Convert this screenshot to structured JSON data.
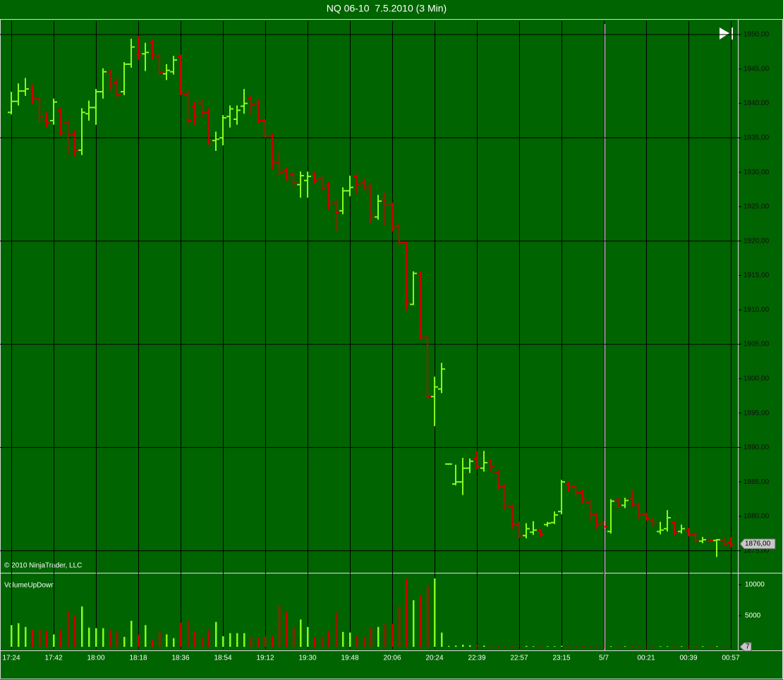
{
  "chart_data": [
    {
      "type": "ohlc",
      "title": "NQ 06-10  7.5.2010 (3 Min)",
      "copyright": "© 2010 NinjaTrader, LLC",
      "x": [
        "17:24",
        null,
        null,
        null,
        null,
        null,
        "17:42",
        null,
        null,
        null,
        null,
        null,
        "18:00",
        null,
        null,
        null,
        null,
        null,
        "18:18",
        null,
        null,
        null,
        null,
        null,
        "18:36",
        null,
        null,
        null,
        null,
        null,
        "18:54",
        null,
        null,
        null,
        null,
        null,
        "19:12",
        null,
        null,
        null,
        null,
        null,
        "19:30",
        null,
        null,
        null,
        null,
        null,
        "19:48",
        null,
        null,
        null,
        null,
        null,
        "20:06",
        null,
        null,
        null,
        null,
        null,
        "20:24",
        null,
        null,
        null,
        null,
        null,
        "22:39",
        null,
        null,
        null,
        null,
        null,
        "22:57",
        null,
        null,
        null,
        null,
        null,
        "23:15",
        null,
        null,
        null,
        null,
        null,
        "5/7",
        null,
        null,
        null,
        null,
        null,
        "00:21",
        null,
        null,
        null,
        null,
        null,
        "00:39",
        null,
        null,
        null,
        null,
        null,
        "00:57"
      ],
      "open": [
        1938.7,
        1940.3,
        1941.8,
        1942.3,
        1940.8,
        1937.6,
        1937.5,
        1939.0,
        1937.3,
        1935.4,
        1933.2,
        1938.5,
        1939.4,
        1941.7,
        1944.6,
        1943.0,
        1941.7,
        1945.7,
        1947.2,
        1947.2,
        1948.8,
        1946.7,
        1944.3,
        1944.6,
        1946.8,
        1941.3,
        1939.6,
        1940.0,
        1938.7,
        1934.6,
        1935.0,
        1938.1,
        1937.7,
        1939.6,
        1940.7,
        1940.0,
        1937.5,
        1935.3,
        1931.5,
        1930.2,
        1929.6,
        1928.2,
        1928.8,
        1929.8,
        1929.2,
        1928.1,
        1925.7,
        1924.4,
        1927.3,
        1929.4,
        1928.6,
        1927.8,
        1923.5,
        1925.8,
        1925.2,
        1922.0,
        1919.8,
        1910.8,
        1915.2,
        1906.0,
        1897.4,
        1898.5,
        1887.6,
        1884.7,
        1885.0,
        1887.0,
        1888.4,
        1887.0,
        1888.0,
        1886.4,
        1884.4,
        1881.4,
        1878.9,
        1877.2,
        1877.7,
        1877.9,
        1878.8,
        1879.1,
        1880.7,
        1884.7,
        1884.3,
        1883.5,
        1882.0,
        1880.2,
        1879.0,
        1877.8,
        1882.4,
        1881.6,
        1882.5,
        1881.6,
        1880.2,
        1879.5,
        1877.8,
        1878.2,
        1879.1,
        1877.8,
        1878.0,
        1877.4,
        1876.4,
        1876.6,
        1876.5,
        1876.4,
        1876.2
      ],
      "high": [
        1941.6,
        1942.8,
        1943.6,
        1942.6,
        1940.8,
        1938.6,
        1940.6,
        1939.2,
        1937.6,
        1936.0,
        1939.2,
        1940.3,
        1942.0,
        1945.0,
        1944.8,
        1943.6,
        1945.9,
        1949.3,
        1949.7,
        1948.7,
        1949.2,
        1947.2,
        1945.6,
        1946.8,
        1947.0,
        1942.0,
        1940.2,
        1940.6,
        1939.2,
        1935.8,
        1938.2,
        1939.6,
        1939.6,
        1942.0,
        1941.0,
        1940.4,
        1937.6,
        1935.5,
        1933.0,
        1930.6,
        1930.0,
        1930.0,
        1930.0,
        1929.9,
        1929.4,
        1928.5,
        1926.0,
        1927.7,
        1929.4,
        1929.6,
        1929.0,
        1928.2,
        1926.6,
        1927.0,
        1925.5,
        1922.5,
        1919.8,
        1915.5,
        1915.5,
        1906.2,
        1900.2,
        1902.2,
        1887.6,
        1887.4,
        1888.4,
        1888.3,
        1889.4,
        1889.4,
        1888.2,
        1886.6,
        1884.6,
        1881.6,
        1879.2,
        1878.9,
        1879.2,
        1878.1,
        1879.1,
        1880.6,
        1885.2,
        1884.9,
        1884.5,
        1883.8,
        1882.4,
        1880.4,
        1879.2,
        1882.4,
        1882.6,
        1882.6,
        1883.7,
        1881.9,
        1880.4,
        1879.8,
        1879.1,
        1880.8,
        1879.2,
        1878.7,
        1878.2,
        1877.6,
        1876.9,
        1876.7,
        1876.6,
        1876.8,
        1876.9
      ],
      "low": [
        1938.5,
        1939.8,
        1941.2,
        1940.0,
        1937.3,
        1936.6,
        1937.0,
        1935.4,
        1932.7,
        1932.4,
        1932.6,
        1937.6,
        1937.0,
        1940.8,
        1942.0,
        1940.9,
        1941.3,
        1945.3,
        1946.4,
        1944.8,
        1946.5,
        1944.3,
        1943.5,
        1944.3,
        1941.3,
        1937.0,
        1937.0,
        1938.0,
        1934.1,
        1933.2,
        1934.0,
        1936.6,
        1937.0,
        1938.6,
        1938.5,
        1937.2,
        1935.1,
        1930.5,
        1929.6,
        1928.9,
        1928.0,
        1926.4,
        1926.4,
        1928.4,
        1927.5,
        1924.7,
        1921.5,
        1924.0,
        1926.6,
        1927.0,
        1927.5,
        1922.6,
        1923.2,
        1922.4,
        1921.5,
        1919.4,
        1910.0,
        1910.8,
        1905.8,
        1897.2,
        1893.2,
        1898.0,
        1887.6,
        1884.6,
        1883.2,
        1886.4,
        1886.9,
        1886.6,
        1886.7,
        1884.0,
        1881.0,
        1878.3,
        1876.9,
        1876.9,
        1877.4,
        1877.1,
        1878.6,
        1879.0,
        1880.4,
        1883.7,
        1882.9,
        1882.0,
        1879.4,
        1878.3,
        1878.3,
        1877.6,
        1881.3,
        1881.3,
        1881.5,
        1879.7,
        1879.5,
        1878.6,
        1877.5,
        1877.9,
        1877.4,
        1877.6,
        1877.2,
        1876.3,
        1876.2,
        1876.4,
        1874.2,
        1875.9,
        1875.6
      ],
      "close": [
        1940.3,
        1941.8,
        1942.1,
        1940.8,
        1938.0,
        1937.2,
        1940.2,
        1935.7,
        1935.4,
        1933.2,
        1938.7,
        1939.4,
        1941.7,
        1944.6,
        1942.6,
        1941.3,
        1945.7,
        1948.2,
        1947.0,
        1947.4,
        1947.2,
        1944.5,
        1944.8,
        1946.3,
        1941.5,
        1937.5,
        1938.0,
        1938.7,
        1934.5,
        1934.8,
        1937.9,
        1939.2,
        1939.0,
        1940.0,
        1939.8,
        1937.5,
        1935.3,
        1931.5,
        1930.0,
        1929.2,
        1928.6,
        1929.5,
        1929.4,
        1928.8,
        1927.7,
        1925.2,
        1924.2,
        1927.3,
        1927.8,
        1928.3,
        1927.8,
        1923.7,
        1925.8,
        1925.2,
        1922.0,
        1919.8,
        1911.0,
        1915.3,
        1906.0,
        1897.4,
        1898.8,
        1901.4,
        1887.6,
        1885.0,
        1887.0,
        1888.0,
        1887.3,
        1887.8,
        1887.2,
        1884.4,
        1881.6,
        1878.9,
        1877.2,
        1878.2,
        1878.0,
        1877.3,
        1879.0,
        1880.2,
        1885.0,
        1884.2,
        1883.5,
        1882.5,
        1880.2,
        1878.9,
        1878.5,
        1882.2,
        1881.6,
        1882.3,
        1881.8,
        1880.2,
        1879.7,
        1879.0,
        1878.0,
        1879.8,
        1877.7,
        1878.2,
        1877.4,
        1876.6,
        1876.6,
        1876.5,
        1876.6,
        1876.0,
        1876.0
      ],
      "last_price_label": "1876,00",
      "ylim": [
        1871.8,
        1951.95
      ],
      "yticks": [
        {
          "value": 1875,
          "label": "1875,00"
        },
        {
          "value": 1880,
          "label": "1880,00"
        },
        {
          "value": 1885,
          "label": "1885,00"
        },
        {
          "value": 1890,
          "label": "1890,00"
        },
        {
          "value": 1895,
          "label": "1895,00"
        },
        {
          "value": 1900,
          "label": "1900,00"
        },
        {
          "value": 1905,
          "label": "1905,00"
        },
        {
          "value": 1910,
          "label": "1910,00"
        },
        {
          "value": 1915,
          "label": "1915,00"
        },
        {
          "value": 1920,
          "label": "1920,00"
        },
        {
          "value": 1925,
          "label": "1925,00"
        },
        {
          "value": 1930,
          "label": "1930,00"
        },
        {
          "value": 1935,
          "label": "1935,00"
        },
        {
          "value": 1940,
          "label": "1940,00"
        },
        {
          "value": 1945,
          "label": "1945,00"
        },
        {
          "value": 1950,
          "label": "1950,00"
        }
      ],
      "grid_every": 3,
      "up_color": "#84ff1c",
      "down_color": "#cc0000",
      "background": "#006400"
    },
    {
      "type": "bar",
      "title": "VolumeUpDown",
      "values": [
        3500,
        3800,
        3200,
        2800,
        2800,
        2600,
        2000,
        2700,
        5800,
        5100,
        6500,
        3100,
        3000,
        3000,
        2700,
        2500,
        1600,
        4200,
        2000,
        3500,
        1100,
        2500,
        2000,
        1400,
        3900,
        4200,
        2500,
        1500,
        2700,
        4000,
        1700,
        2200,
        2200,
        2200,
        1500,
        1500,
        1700,
        1700,
        6700,
        5600,
        3100,
        4400,
        3200,
        1500,
        1600,
        2600,
        5600,
        2400,
        2300,
        1800,
        1600,
        3100,
        3200,
        3600,
        3700,
        6500,
        11000,
        7500,
        8200,
        9900,
        11000,
        2300,
        150,
        200,
        350,
        250,
        300,
        200,
        150,
        150,
        100,
        100,
        120,
        150,
        100,
        100,
        100,
        100,
        150,
        100,
        100,
        100,
        100,
        100,
        100,
        100,
        100,
        100,
        150,
        100,
        100,
        100,
        100,
        100,
        100,
        100,
        100,
        100,
        100,
        100,
        100,
        100,
        7
      ],
      "ylim": [
        0,
        11800
      ],
      "yticks": [
        5000,
        10000
      ]
    }
  ]
}
